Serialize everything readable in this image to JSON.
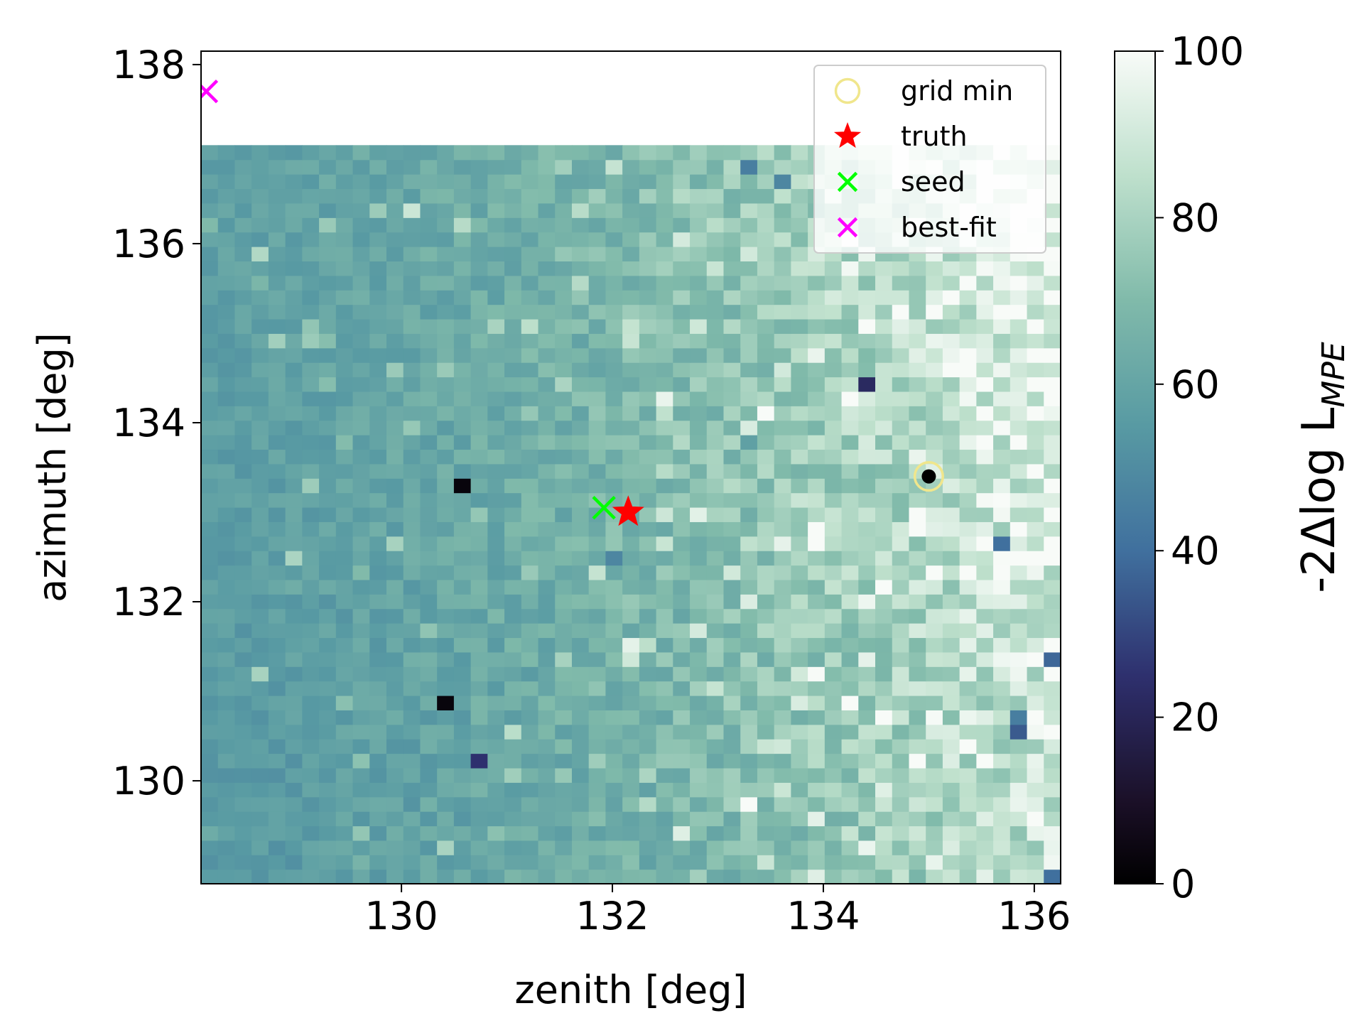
{
  "chart_data": {
    "type": "heatmap",
    "xlabel": "zenith [deg]",
    "ylabel": "azimuth [deg]",
    "xlim": [
      128.1,
      136.25
    ],
    "ylim": [
      128.85,
      138.15
    ],
    "x_ticks": [
      130,
      132,
      134,
      136
    ],
    "y_ticks": [
      130,
      132,
      134,
      136,
      138
    ],
    "x_tick_labels": [
      "130",
      "132",
      "134",
      "136"
    ],
    "y_tick_labels": [
      "130",
      "132",
      "134",
      "136",
      "138"
    ],
    "grid_extent": {
      "x": [
        128.1,
        136.25
      ],
      "y": [
        128.85,
        137.1
      ]
    },
    "grid_cells": {
      "nx": 51,
      "ny": 51
    },
    "colormap": "cubehelix-teal",
    "colorbar": {
      "label": "-2Δlog L",
      "label_subscript": "MPE",
      "range": [
        0,
        100
      ],
      "ticks": [
        0,
        20,
        40,
        60,
        80,
        100
      ],
      "tick_labels": [
        "0",
        "20",
        "40",
        "60",
        "80",
        "100"
      ]
    },
    "grid_description": "values ≈ 55 on the left rising to ≈ 95-100 on the right, with isolated outlier cells",
    "outliers": [
      {
        "x": 130.6,
        "y": 133.25,
        "value": 3
      },
      {
        "x": 130.45,
        "y": 130.8,
        "value": 3
      },
      {
        "x": 130.75,
        "y": 130.3,
        "value": 25
      },
      {
        "x": 134.35,
        "y": 134.4,
        "value": 22
      },
      {
        "x": 135.65,
        "y": 132.6,
        "value": 40
      },
      {
        "x": 135.8,
        "y": 130.5,
        "value": 35
      },
      {
        "x": 135.8,
        "y": 130.7,
        "value": 45
      },
      {
        "x": 136.15,
        "y": 131.3,
        "value": 38
      },
      {
        "x": 136.15,
        "y": 128.95,
        "value": 40
      },
      {
        "x": 133.35,
        "y": 136.85,
        "value": 45
      },
      {
        "x": 133.55,
        "y": 136.7,
        "value": 48
      },
      {
        "x": 132.05,
        "y": 132.45,
        "value": 48
      },
      {
        "x": 133.35,
        "y": 133.75,
        "value": 58
      }
    ],
    "series": [
      {
        "name": "grid min",
        "marker": "circle",
        "color": "#f0e68c",
        "x": [
          135.0
        ],
        "y": [
          133.4
        ]
      },
      {
        "name": "truth",
        "marker": "star",
        "color": "#ff0000",
        "x": [
          132.15
        ],
        "y": [
          133.0
        ]
      },
      {
        "name": "seed",
        "marker": "x",
        "color": "#00ff00",
        "x": [
          131.92
        ],
        "y": [
          133.05
        ]
      },
      {
        "name": "best-fit",
        "marker": "x",
        "color": "#ff00ff",
        "x": [
          128.15
        ],
        "y": [
          137.7
        ]
      }
    ],
    "legend_position": "top-right"
  }
}
